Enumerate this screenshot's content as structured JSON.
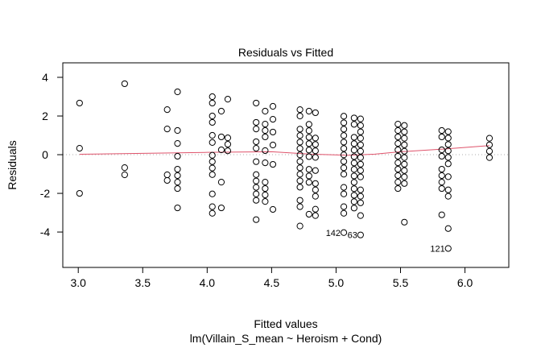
{
  "chart_data": {
    "type": "scatter",
    "title": "Residuals vs Fitted",
    "xlabel": "Fitted values",
    "subtitle": "lm(Villain_S_mean ~ Heroism + Cond)",
    "ylabel": "Residuals",
    "xlim": [
      2.88,
      6.34
    ],
    "ylim": [
      -5.83,
      4.75
    ],
    "xticks": [
      3.0,
      3.5,
      4.0,
      4.5,
      5.0,
      5.5,
      6.0
    ],
    "xtick_labels": [
      "3.0",
      "3.5",
      "4.0",
      "4.5",
      "5.0",
      "5.5",
      "6.0"
    ],
    "yticks": [
      -4,
      -2,
      0,
      2,
      4
    ],
    "ytick_labels": [
      "-4",
      "-2",
      "0",
      "2",
      "4"
    ],
    "grid": false,
    "reference_line": 0,
    "colors": {
      "smooth": "#df536b",
      "reference": "#bebebe",
      "points": "#000000"
    },
    "columns": [
      {
        "x": 3.01,
        "y": [
          2.67,
          0.33,
          -2.0
        ]
      },
      {
        "x": 3.36,
        "y": [
          3.67,
          -0.67,
          -1.04
        ]
      },
      {
        "x": 3.69,
        "y": [
          2.33,
          1.33,
          -1.04,
          -1.33
        ]
      },
      {
        "x": 3.77,
        "y": [
          3.25,
          1.25,
          0.58,
          -0.08,
          -0.75,
          -1.08,
          -1.42,
          -1.75,
          -2.75
        ]
      },
      {
        "x": 4.04,
        "y": [
          3.0,
          2.67,
          2.0,
          1.67,
          1.0,
          0.63,
          -0.03,
          -0.36,
          -0.69,
          -1.03,
          -2.03,
          -2.69,
          -3.03
        ]
      },
      {
        "x": 4.11,
        "y": [
          2.25,
          0.92,
          0.25,
          -1.42,
          -2.75
        ]
      },
      {
        "x": 4.16,
        "y": [
          2.87,
          0.87,
          0.54,
          0.2
        ]
      },
      {
        "x": 4.38,
        "y": [
          2.67,
          1.67,
          1.33,
          0.67,
          0.33,
          -0.36,
          -1.03,
          -1.36,
          -1.69,
          -2.03,
          -2.36,
          -3.36
        ]
      },
      {
        "x": 4.45,
        "y": [
          2.25,
          1.58,
          1.25,
          0.92,
          0.21,
          -0.42,
          -1.42,
          -1.75,
          -2.08,
          -2.42
        ]
      },
      {
        "x": 4.51,
        "y": [
          2.5,
          1.83,
          1.17,
          0.5,
          -0.5,
          -2.83
        ]
      },
      {
        "x": 4.72,
        "y": [
          2.33,
          2.0,
          1.32,
          0.99,
          0.65,
          0.32,
          -0.01,
          -0.35,
          -0.68,
          -1.01,
          -1.35,
          -1.68,
          -2.36,
          -2.69,
          -3.69
        ]
      },
      {
        "x": 4.79,
        "y": [
          2.25,
          1.57,
          1.24,
          0.9,
          0.57,
          0.24,
          -0.1,
          -0.76,
          -1.1,
          -1.43,
          -3.08
        ]
      },
      {
        "x": 4.84,
        "y": [
          2.17,
          0.86,
          0.53,
          0.2,
          -0.14,
          -0.82,
          -1.49,
          -1.82,
          -2.15,
          -2.82,
          -3.15
        ]
      },
      {
        "x": 5.06,
        "y": [
          1.99,
          1.65,
          1.32,
          0.99,
          0.65,
          0.32,
          -0.01,
          -0.35,
          -0.68,
          -1.01,
          -1.69,
          -2.03,
          -2.69,
          -3.03,
          -4.03
        ]
      },
      {
        "x": 5.14,
        "y": [
          1.9,
          1.57,
          0.9,
          0.57,
          0.24,
          -0.1,
          -0.43,
          -0.76,
          -1.1,
          -1.43,
          -1.76,
          -2.1,
          -2.43,
          -2.76
        ]
      },
      {
        "x": 5.19,
        "y": [
          1.85,
          1.51,
          1.18,
          0.85,
          0.51,
          0.18,
          -0.15,
          -0.49,
          -0.82,
          -1.15,
          -1.82,
          -2.15,
          -2.49,
          -3.15,
          -4.15
        ]
      },
      {
        "x": 5.48,
        "y": [
          1.58,
          1.25,
          0.92,
          0.58,
          0.25,
          -0.08,
          -0.42,
          -0.75,
          -1.08,
          -1.42,
          -1.75
        ]
      },
      {
        "x": 5.53,
        "y": [
          1.51,
          1.18,
          0.85,
          0.51,
          0.18,
          -0.15,
          -0.49,
          -0.82,
          -1.15,
          -1.49,
          -3.49
        ]
      },
      {
        "x": 5.82,
        "y": [
          1.25,
          0.92,
          0.25,
          -0.08,
          -0.75,
          -1.08,
          -1.42,
          -1.75,
          -3.11
        ]
      },
      {
        "x": 5.87,
        "y": [
          1.19,
          0.86,
          0.53,
          0.2,
          -0.14,
          -0.47,
          -1.14,
          -1.82,
          -2.15,
          -3.82,
          -4.85
        ]
      },
      {
        "x": 6.19,
        "y": [
          0.85,
          0.51,
          0.18,
          -0.15
        ]
      }
    ],
    "smooth": {
      "x": [
        3.01,
        3.5,
        4.0,
        4.5,
        4.8,
        5.1,
        5.3,
        5.5,
        5.85,
        6.19
      ],
      "y": [
        0.02,
        0.07,
        0.12,
        0.15,
        0.03,
        -0.03,
        0.03,
        0.15,
        0.3,
        0.47
      ]
    },
    "annotations": [
      {
        "label": "142",
        "x": 5.06,
        "y": -4.03,
        "side": "left"
      },
      {
        "label": "63",
        "x": 5.19,
        "y": -4.15,
        "side": "left"
      },
      {
        "label": "121",
        "x": 5.87,
        "y": -4.85,
        "side": "left"
      }
    ]
  }
}
